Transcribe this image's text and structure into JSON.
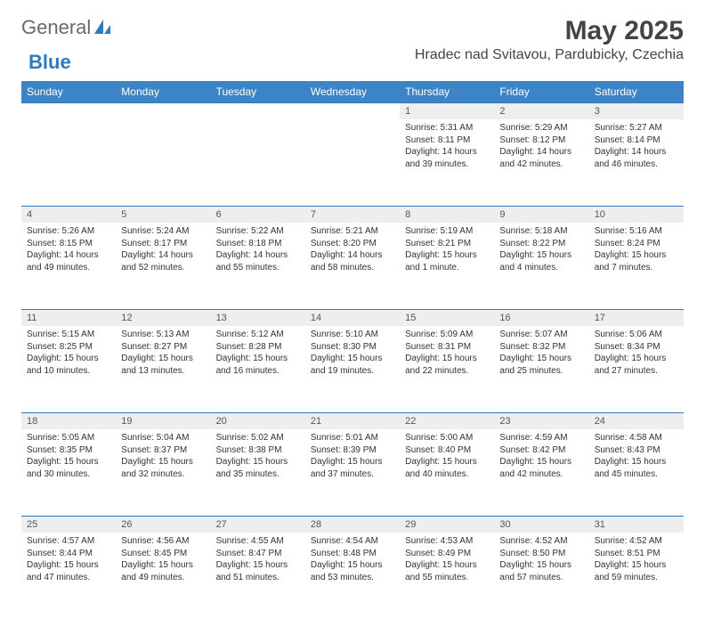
{
  "logo": {
    "text1": "General",
    "text2": "Blue"
  },
  "title": "May 2025",
  "location": "Hradec nad Svitavou, Pardubicky, Czechia",
  "colors": {
    "header_bg": "#3b85c6",
    "header_text": "#ffffff",
    "rule": "#2f79bd",
    "daynum_bg": "#eeeeee",
    "text": "#333333",
    "title": "#444444",
    "logo_gray": "#6a6a6a",
    "logo_blue": "#2f79bd"
  },
  "day_headers": [
    "Sunday",
    "Monday",
    "Tuesday",
    "Wednesday",
    "Thursday",
    "Friday",
    "Saturday"
  ],
  "weeks": [
    {
      "nums": [
        "",
        "",
        "",
        "",
        "1",
        "2",
        "3"
      ],
      "cells": [
        null,
        null,
        null,
        null,
        {
          "sunrise": "5:31 AM",
          "sunset": "8:11 PM",
          "daylight": "14 hours and 39 minutes."
        },
        {
          "sunrise": "5:29 AM",
          "sunset": "8:12 PM",
          "daylight": "14 hours and 42 minutes."
        },
        {
          "sunrise": "5:27 AM",
          "sunset": "8:14 PM",
          "daylight": "14 hours and 46 minutes."
        }
      ]
    },
    {
      "nums": [
        "4",
        "5",
        "6",
        "7",
        "8",
        "9",
        "10"
      ],
      "cells": [
        {
          "sunrise": "5:26 AM",
          "sunset": "8:15 PM",
          "daylight": "14 hours and 49 minutes."
        },
        {
          "sunrise": "5:24 AM",
          "sunset": "8:17 PM",
          "daylight": "14 hours and 52 minutes."
        },
        {
          "sunrise": "5:22 AM",
          "sunset": "8:18 PM",
          "daylight": "14 hours and 55 minutes."
        },
        {
          "sunrise": "5:21 AM",
          "sunset": "8:20 PM",
          "daylight": "14 hours and 58 minutes."
        },
        {
          "sunrise": "5:19 AM",
          "sunset": "8:21 PM",
          "daylight": "15 hours and 1 minute."
        },
        {
          "sunrise": "5:18 AM",
          "sunset": "8:22 PM",
          "daylight": "15 hours and 4 minutes."
        },
        {
          "sunrise": "5:16 AM",
          "sunset": "8:24 PM",
          "daylight": "15 hours and 7 minutes."
        }
      ]
    },
    {
      "nums": [
        "11",
        "12",
        "13",
        "14",
        "15",
        "16",
        "17"
      ],
      "cells": [
        {
          "sunrise": "5:15 AM",
          "sunset": "8:25 PM",
          "daylight": "15 hours and 10 minutes."
        },
        {
          "sunrise": "5:13 AM",
          "sunset": "8:27 PM",
          "daylight": "15 hours and 13 minutes."
        },
        {
          "sunrise": "5:12 AM",
          "sunset": "8:28 PM",
          "daylight": "15 hours and 16 minutes."
        },
        {
          "sunrise": "5:10 AM",
          "sunset": "8:30 PM",
          "daylight": "15 hours and 19 minutes."
        },
        {
          "sunrise": "5:09 AM",
          "sunset": "8:31 PM",
          "daylight": "15 hours and 22 minutes."
        },
        {
          "sunrise": "5:07 AM",
          "sunset": "8:32 PM",
          "daylight": "15 hours and 25 minutes."
        },
        {
          "sunrise": "5:06 AM",
          "sunset": "8:34 PM",
          "daylight": "15 hours and 27 minutes."
        }
      ]
    },
    {
      "nums": [
        "18",
        "19",
        "20",
        "21",
        "22",
        "23",
        "24"
      ],
      "cells": [
        {
          "sunrise": "5:05 AM",
          "sunset": "8:35 PM",
          "daylight": "15 hours and 30 minutes."
        },
        {
          "sunrise": "5:04 AM",
          "sunset": "8:37 PM",
          "daylight": "15 hours and 32 minutes."
        },
        {
          "sunrise": "5:02 AM",
          "sunset": "8:38 PM",
          "daylight": "15 hours and 35 minutes."
        },
        {
          "sunrise": "5:01 AM",
          "sunset": "8:39 PM",
          "daylight": "15 hours and 37 minutes."
        },
        {
          "sunrise": "5:00 AM",
          "sunset": "8:40 PM",
          "daylight": "15 hours and 40 minutes."
        },
        {
          "sunrise": "4:59 AM",
          "sunset": "8:42 PM",
          "daylight": "15 hours and 42 minutes."
        },
        {
          "sunrise": "4:58 AM",
          "sunset": "8:43 PM",
          "daylight": "15 hours and 45 minutes."
        }
      ]
    },
    {
      "nums": [
        "25",
        "26",
        "27",
        "28",
        "29",
        "30",
        "31"
      ],
      "cells": [
        {
          "sunrise": "4:57 AM",
          "sunset": "8:44 PM",
          "daylight": "15 hours and 47 minutes."
        },
        {
          "sunrise": "4:56 AM",
          "sunset": "8:45 PM",
          "daylight": "15 hours and 49 minutes."
        },
        {
          "sunrise": "4:55 AM",
          "sunset": "8:47 PM",
          "daylight": "15 hours and 51 minutes."
        },
        {
          "sunrise": "4:54 AM",
          "sunset": "8:48 PM",
          "daylight": "15 hours and 53 minutes."
        },
        {
          "sunrise": "4:53 AM",
          "sunset": "8:49 PM",
          "daylight": "15 hours and 55 minutes."
        },
        {
          "sunrise": "4:52 AM",
          "sunset": "8:50 PM",
          "daylight": "15 hours and 57 minutes."
        },
        {
          "sunrise": "4:52 AM",
          "sunset": "8:51 PM",
          "daylight": "15 hours and 59 minutes."
        }
      ]
    }
  ],
  "labels": {
    "sunrise": "Sunrise: ",
    "sunset": "Sunset: ",
    "daylight": "Daylight: "
  }
}
